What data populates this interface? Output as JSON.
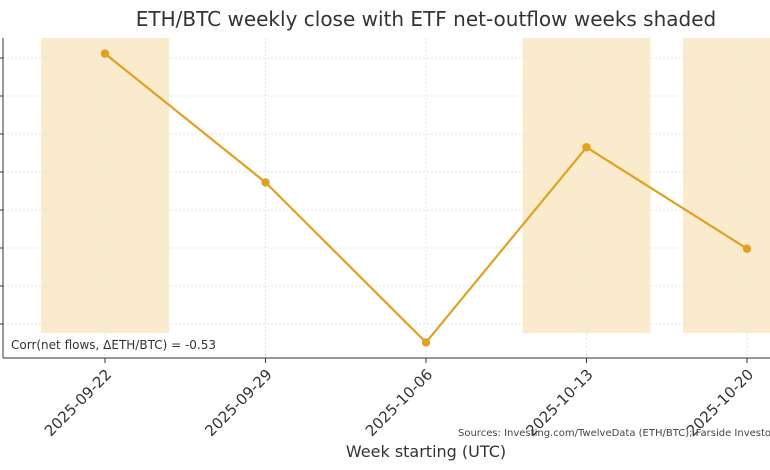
{
  "chart_data": {
    "type": "line",
    "title": "ETH/BTC weekly close with ETF net-outflow weeks shaded",
    "xlabel": "Week starting (UTC)",
    "ylabel": "",
    "categories": [
      "2025-09-22",
      "2025-09-29",
      "2025-10-06",
      "2025-10-13",
      "2025-10-20"
    ],
    "series": [
      {
        "values": [
          0.0405,
          0.0372,
          0.0331,
          0.0381,
          0.0355
        ],
        "color": "#e0a020"
      }
    ],
    "ylim": [
      0.0327,
      0.0409
    ],
    "shaded_categories": [
      "2025-09-22",
      "2025-10-13",
      "2025-10-20"
    ],
    "shade_color": "#fbebcd",
    "grid": true,
    "annotation": "Corr(net flows, ΔETH/BTC) = -0.53",
    "source_note": "Sources: Investing.com/TwelveData (ETH/BTC); Farside Investors"
  }
}
